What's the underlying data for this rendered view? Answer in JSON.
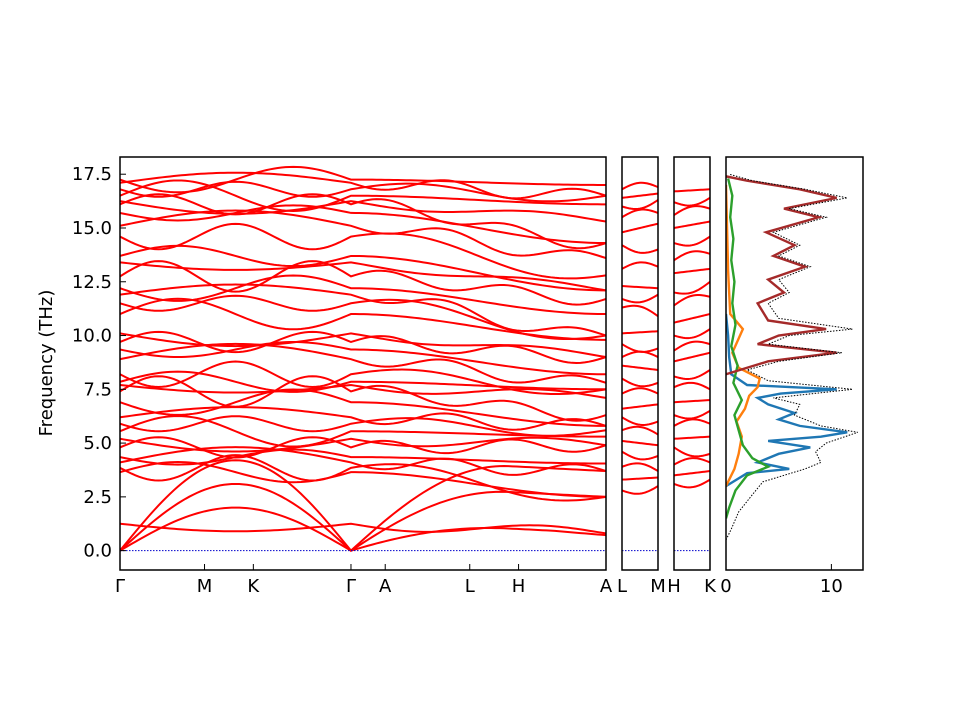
{
  "chart_data": [
    {
      "type": "line",
      "panel": "band structure (Gamma-M-K-Gamma-A-L-H-A)",
      "ylabel": "Frequency (THz)",
      "ylim": [
        -0.9,
        18.3
      ],
      "yticks": [
        0.0,
        2.5,
        5.0,
        7.5,
        10.0,
        12.5,
        15.0,
        17.5
      ],
      "ytick_labels": [
        "0.0",
        "2.5",
        "5.0",
        "7.5",
        "10.0",
        "12.5",
        "15.0",
        "17.5"
      ],
      "x_path": [
        "Γ",
        "M",
        "K",
        "Γ",
        "A",
        "L",
        "H",
        "A"
      ],
      "x_positions": [
        0,
        0.58,
        0.915,
        1.585,
        1.82,
        2.4,
        2.735,
        3.335
      ],
      "xlim": [
        0,
        3.335
      ],
      "band_color": "#ff0000",
      "zero_line_color": "#0000cc",
      "gamma_values_THz": [
        0.0,
        0.0,
        0.0,
        1.25,
        3.65,
        3.85,
        4.1,
        4.35,
        4.8,
        5.2,
        5.55,
        5.9,
        6.2,
        6.9,
        7.4,
        7.7,
        7.85,
        8.2,
        8.9,
        9.35,
        9.7,
        10.1,
        11.0,
        11.5,
        11.9,
        12.2,
        12.75,
        13.4,
        13.7,
        14.6,
        15.1,
        15.7,
        16.1,
        16.25,
        16.5,
        16.8,
        17.1,
        17.25
      ],
      "a_point_values_THz": [
        0.8,
        2.5,
        3.7,
        4.05,
        4.9,
        5.3,
        5.6,
        5.8,
        6.3,
        7.1,
        7.5,
        7.8,
        8.2,
        9.0,
        9.8,
        10.0,
        11.0,
        11.7,
        12.1,
        12.8,
        13.6,
        14.3,
        15.3,
        16.1,
        16.5,
        17.0
      ]
    },
    {
      "type": "line",
      "panel": "band structure (L-M)",
      "x_path": [
        "L",
        "M"
      ],
      "ylim": [
        -0.9,
        18.3
      ],
      "values_at_L_THz": [
        2.8,
        3.3,
        3.9,
        4.6,
        5.1,
        5.6,
        6.2,
        6.6,
        7.3,
        8.0,
        8.6,
        9.0,
        9.6,
        10.1,
        11.3,
        11.7,
        12.3,
        13.1,
        14.2,
        14.8,
        15.5,
        16.0,
        16.4,
        16.8
      ],
      "values_at_M_THz": [
        3.0,
        3.4,
        3.7,
        4.4,
        4.9,
        5.4,
        6.0,
        6.8,
        7.3,
        7.8,
        8.4,
        9.0,
        9.4,
        10.2,
        10.9,
        11.9,
        12.2,
        13.2,
        14.0,
        15.2,
        15.7,
        16.3,
        16.6,
        16.9
      ]
    },
    {
      "type": "line",
      "panel": "band structure (H-K)",
      "x_path": [
        "H",
        "K"
      ],
      "ylim": [
        -0.9,
        18.3
      ],
      "values_at_H_THz": [
        3.1,
        3.5,
        4.0,
        4.8,
        5.2,
        5.8,
        6.3,
        6.9,
        7.6,
        8.1,
        8.8,
        9.3,
        10.0,
        10.6,
        11.4,
        12.0,
        12.9,
        13.5,
        14.3,
        15.0,
        15.6,
        16.2,
        16.7
      ],
      "values_at_K_THz": [
        3.3,
        3.7,
        4.1,
        4.5,
        5.3,
        5.9,
        6.5,
        7.0,
        7.5,
        8.4,
        9.2,
        9.6,
        10.3,
        11.0,
        11.8,
        12.5,
        13.1,
        13.8,
        14.6,
        15.3,
        15.9,
        16.4,
        16.8
      ]
    },
    {
      "type": "line",
      "panel": "phonon DOS",
      "xlim": [
        0,
        13
      ],
      "xticks": [
        0,
        10
      ],
      "xtick_labels": [
        "0",
        "10"
      ],
      "ylim": [
        -0.9,
        18.3
      ],
      "series": [
        {
          "color": "#1f77b4",
          "points": [
            [
              0,
              3.0
            ],
            [
              2,
              3.6
            ],
            [
              6,
              3.8
            ],
            [
              3,
              4.1
            ],
            [
              5,
              4.5
            ],
            [
              8,
              4.8
            ],
            [
              4,
              5.1
            ],
            [
              9,
              5.3
            ],
            [
              11.5,
              5.5
            ],
            [
              7,
              5.8
            ],
            [
              5,
              6.1
            ],
            [
              6.5,
              6.4
            ],
            [
              4,
              6.8
            ],
            [
              3,
              7.1
            ],
            [
              5.2,
              7.3
            ],
            [
              10.5,
              7.5
            ],
            [
              2,
              7.7
            ],
            [
              0.5,
              8.2
            ],
            [
              0.3,
              9.0
            ],
            [
              0.2,
              10.0
            ],
            [
              0,
              11.0
            ]
          ]
        },
        {
          "color": "#ff7f0e",
          "points": [
            [
              0,
              3.0
            ],
            [
              0.8,
              3.8
            ],
            [
              1.2,
              4.5
            ],
            [
              1.5,
              5.3
            ],
            [
              1.0,
              6.0
            ],
            [
              1.8,
              6.6
            ],
            [
              2.2,
              7.2
            ],
            [
              3.0,
              7.6
            ],
            [
              3.2,
              8.0
            ],
            [
              1.2,
              8.5
            ],
            [
              0.6,
              9.2
            ],
            [
              1.6,
              10.3
            ],
            [
              0.4,
              11.0
            ],
            [
              0.2,
              13.0
            ],
            [
              0,
              17.0
            ]
          ]
        },
        {
          "color": "#2ca02c",
          "points": [
            [
              0,
              1.5
            ],
            [
              0.3,
              2.0
            ],
            [
              0.9,
              2.8
            ],
            [
              2.0,
              3.5
            ],
            [
              4.0,
              3.9
            ],
            [
              2.5,
              4.3
            ],
            [
              1.6,
              4.9
            ],
            [
              1.2,
              5.6
            ],
            [
              0.8,
              6.3
            ],
            [
              1.5,
              7.0
            ],
            [
              0.7,
              7.8
            ],
            [
              1.1,
              8.6
            ],
            [
              0.5,
              9.5
            ],
            [
              0.9,
              10.5
            ],
            [
              0.6,
              11.5
            ],
            [
              0.8,
              12.5
            ],
            [
              0.5,
              13.5
            ],
            [
              0.7,
              14.5
            ],
            [
              0.4,
              15.5
            ],
            [
              0.6,
              16.5
            ],
            [
              0.2,
              17.3
            ]
          ]
        },
        {
          "color": "#a52a2a",
          "points": [
            [
              0,
              8.2
            ],
            [
              4.0,
              8.8
            ],
            [
              10.5,
              9.2
            ],
            [
              3.0,
              9.6
            ],
            [
              5.0,
              10.0
            ],
            [
              9.5,
              10.3
            ],
            [
              4.0,
              10.7
            ],
            [
              3.0,
              11.5
            ],
            [
              5.5,
              12.0
            ],
            [
              4.0,
              12.6
            ],
            [
              7.5,
              13.2
            ],
            [
              4.5,
              13.7
            ],
            [
              6.5,
              14.2
            ],
            [
              3.8,
              14.8
            ],
            [
              8.8,
              15.5
            ],
            [
              5.5,
              15.9
            ],
            [
              10.5,
              16.4
            ],
            [
              7.0,
              16.8
            ],
            [
              2.0,
              17.2
            ],
            [
              0,
              17.4
            ]
          ]
        },
        {
          "color": "#000000",
          "dotted": true,
          "points": [
            [
              0,
              0.5
            ],
            [
              0.5,
              1.0
            ],
            [
              1.2,
              1.8
            ],
            [
              2.5,
              2.6
            ],
            [
              3.5,
              3.2
            ],
            [
              7.5,
              3.8
            ],
            [
              9.0,
              4.1
            ],
            [
              8.5,
              4.6
            ],
            [
              9.5,
              5.0
            ],
            [
              12.5,
              5.5
            ],
            [
              9.0,
              5.8
            ],
            [
              6.5,
              6.3
            ],
            [
              7.0,
              6.8
            ],
            [
              4.5,
              7.1
            ],
            [
              12.0,
              7.5
            ],
            [
              4.0,
              7.9
            ],
            [
              2.0,
              8.4
            ],
            [
              5.0,
              8.8
            ],
            [
              11.0,
              9.2
            ],
            [
              4.0,
              9.6
            ],
            [
              6.0,
              10.0
            ],
            [
              12.0,
              10.3
            ],
            [
              5.0,
              10.8
            ],
            [
              4.0,
              11.5
            ],
            [
              6.0,
              12.0
            ],
            [
              5.0,
              12.6
            ],
            [
              8.0,
              13.2
            ],
            [
              5.0,
              13.7
            ],
            [
              7.0,
              14.2
            ],
            [
              4.5,
              14.8
            ],
            [
              9.5,
              15.5
            ],
            [
              6.0,
              15.9
            ],
            [
              11.5,
              16.4
            ],
            [
              7.5,
              16.8
            ],
            [
              2.5,
              17.2
            ],
            [
              0.3,
              17.5
            ]
          ]
        }
      ]
    }
  ]
}
